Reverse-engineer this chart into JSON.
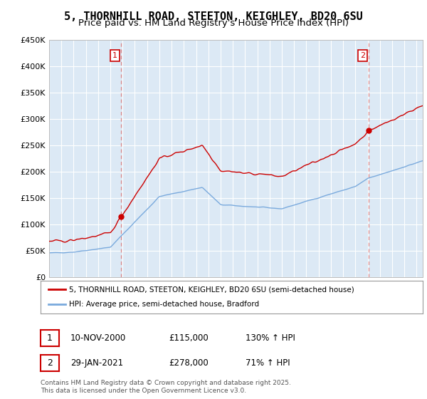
{
  "title1": "5, THORNHILL ROAD, STEETON, KEIGHLEY, BD20 6SU",
  "title2": "Price paid vs. HM Land Registry's House Price Index (HPI)",
  "ylim": [
    0,
    450000
  ],
  "yticks": [
    0,
    50000,
    100000,
    150000,
    200000,
    250000,
    300000,
    350000,
    400000,
    450000
  ],
  "ytick_labels": [
    "£0",
    "£50K",
    "£100K",
    "£150K",
    "£200K",
    "£250K",
    "£300K",
    "£350K",
    "£400K",
    "£450K"
  ],
  "sale1_date": 2000.87,
  "sale1_price": 115000,
  "sale1_label": "1",
  "sale2_date": 2021.08,
  "sale2_price": 278000,
  "sale2_label": "2",
  "red_line_color": "#cc0000",
  "blue_line_color": "#7aaadd",
  "vline_color": "#dd8888",
  "background_color": "#ffffff",
  "plot_bg_color": "#dce9f5",
  "grid_color": "#ffffff",
  "legend_label_red": "5, THORNHILL ROAD, STEETON, KEIGHLEY, BD20 6SU (semi-detached house)",
  "legend_label_blue": "HPI: Average price, semi-detached house, Bradford",
  "table_row1": [
    "1",
    "10-NOV-2000",
    "£115,000",
    "130% ↑ HPI"
  ],
  "table_row2": [
    "2",
    "29-JAN-2021",
    "£278,000",
    "71% ↑ HPI"
  ],
  "footnote": "Contains HM Land Registry data © Crown copyright and database right 2025.\nThis data is licensed under the Open Government Licence v3.0.",
  "title_fontsize": 11,
  "subtitle_fontsize": 9.5
}
